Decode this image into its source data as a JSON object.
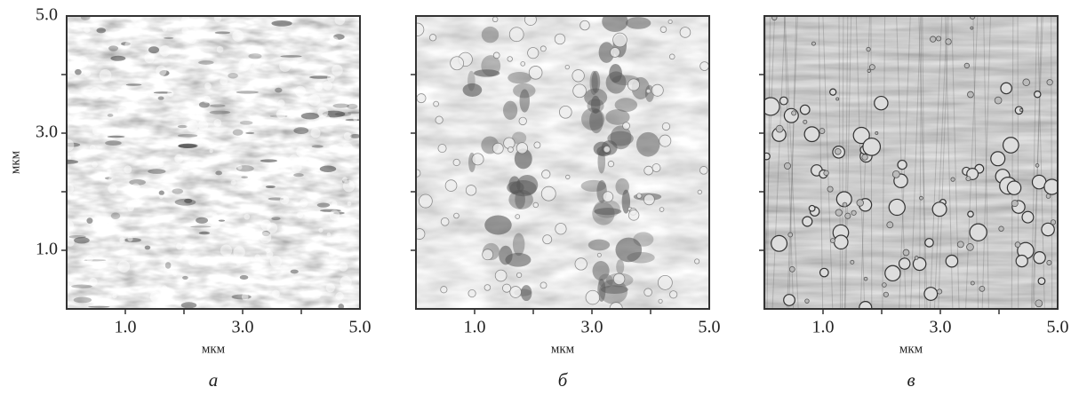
{
  "panels": [
    {
      "label": "а",
      "x_axis_label": "мкм",
      "y_axis_label": "мкм"
    },
    {
      "label": "б",
      "x_axis_label": "мкм"
    },
    {
      "label": "в",
      "x_axis_label": "мкм"
    }
  ],
  "axis": {
    "lim": [
      0,
      5
    ],
    "ticks": [
      1,
      2,
      3,
      4
    ],
    "tick_labels": [
      {
        "value": 1,
        "label": "1.0"
      },
      {
        "value": 3,
        "label": "3.0"
      },
      {
        "value": 5,
        "label": "5.0"
      }
    ]
  }
}
